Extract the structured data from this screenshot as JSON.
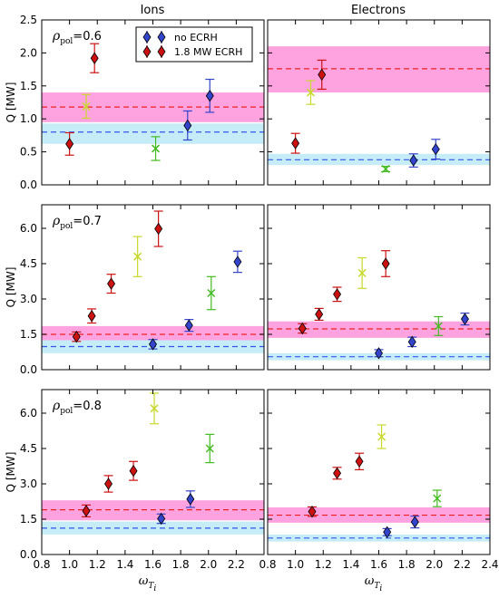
{
  "chart_data": {
    "type": "scatter",
    "column_titles": [
      "Ions",
      "Electrons"
    ],
    "ylabel": "Q [MW]",
    "xlabel": "ω",
    "xlabel_sub": "T",
    "xlabel_subsub": "i",
    "rho_symbol": "ρ",
    "rho_sub": "pol",
    "legend": {
      "location": "top",
      "entries": [
        {
          "label": "no ECRH",
          "color": "#3344cc"
        },
        {
          "label": "1.8 MW ECRH",
          "color": "#cc1111"
        }
      ]
    },
    "colors": {
      "noecrh": "#3344cc",
      "ecrh": "#cc1111",
      "yellowgreen": "#c8d82a",
      "green": "#44bb22",
      "band_ecrh": "#ff99dd",
      "band_noecrh": "#c6ecf8",
      "dash_ecrh": "#ee2222",
      "dash_noecrh": "#3355ee"
    },
    "panels": [
      {
        "row": 0,
        "col": 0,
        "rho_label": "=0.6",
        "xlim": [
          0.8,
          2.4
        ],
        "ylim": [
          0.0,
          2.5
        ],
        "yticks": [
          "0.0",
          "0.5",
          "1.0",
          "1.5",
          "2.0",
          "2.5"
        ],
        "xticks": [],
        "bands": [
          {
            "kind": "ecrh",
            "lo": 0.95,
            "hi": 1.4,
            "mid": 1.18
          },
          {
            "kind": "noecrh",
            "lo": 0.62,
            "hi": 0.93,
            "mid": 0.8
          }
        ],
        "points": [
          {
            "x": 1.0,
            "y": 0.62,
            "err": 0.17,
            "color": "ecrh",
            "marker": "diamond"
          },
          {
            "x": 1.12,
            "y": 1.19,
            "err": 0.18,
            "color": "yellowgreen",
            "marker": "x"
          },
          {
            "x": 1.18,
            "y": 1.92,
            "err": 0.22,
            "color": "ecrh",
            "marker": "diamond"
          },
          {
            "x": 1.62,
            "y": 0.55,
            "err": 0.18,
            "color": "green",
            "marker": "x"
          },
          {
            "x": 1.85,
            "y": 0.9,
            "err": 0.22,
            "color": "noecrh",
            "marker": "diamond"
          },
          {
            "x": 2.01,
            "y": 1.35,
            "err": 0.25,
            "color": "noecrh",
            "marker": "diamond"
          }
        ]
      },
      {
        "row": 0,
        "col": 1,
        "rho_label": "",
        "xlim": [
          0.8,
          2.4
        ],
        "ylim": [
          0.0,
          2.5
        ],
        "yticks": [],
        "xticks": [],
        "bands": [
          {
            "kind": "ecrh",
            "lo": 1.4,
            "hi": 2.1,
            "mid": 1.76
          },
          {
            "kind": "noecrh",
            "lo": 0.3,
            "hi": 0.47,
            "mid": 0.38
          }
        ],
        "points": [
          {
            "x": 1.0,
            "y": 0.63,
            "err": 0.15,
            "color": "ecrh",
            "marker": "diamond"
          },
          {
            "x": 1.11,
            "y": 1.4,
            "err": 0.18,
            "color": "yellowgreen",
            "marker": "x"
          },
          {
            "x": 1.19,
            "y": 1.67,
            "err": 0.22,
            "color": "ecrh",
            "marker": "diamond"
          },
          {
            "x": 1.65,
            "y": 0.24,
            "err": 0.04,
            "color": "green",
            "marker": "x"
          },
          {
            "x": 1.85,
            "y": 0.37,
            "err": 0.1,
            "color": "noecrh",
            "marker": "diamond"
          },
          {
            "x": 2.01,
            "y": 0.54,
            "err": 0.15,
            "color": "noecrh",
            "marker": "diamond"
          }
        ]
      },
      {
        "row": 1,
        "col": 0,
        "rho_label": "=0.7",
        "xlim": [
          0.8,
          2.4
        ],
        "ylim": [
          0.0,
          7.0
        ],
        "yticks": [
          "0.0",
          "1.5",
          "3.0",
          "4.5",
          "6.0"
        ],
        "xticks": [],
        "bands": [
          {
            "kind": "ecrh",
            "lo": 1.2,
            "hi": 1.85,
            "mid": 1.5
          },
          {
            "kind": "noecrh",
            "lo": 0.7,
            "hi": 1.25,
            "mid": 0.98
          }
        ],
        "points": [
          {
            "x": 1.05,
            "y": 1.4,
            "err": 0.2,
            "color": "ecrh",
            "marker": "diamond"
          },
          {
            "x": 1.16,
            "y": 2.28,
            "err": 0.3,
            "color": "ecrh",
            "marker": "diamond"
          },
          {
            "x": 1.3,
            "y": 3.65,
            "err": 0.4,
            "color": "ecrh",
            "marker": "diamond"
          },
          {
            "x": 1.49,
            "y": 4.8,
            "err": 0.85,
            "color": "yellowgreen",
            "marker": "x"
          },
          {
            "x": 1.6,
            "y": 1.08,
            "err": 0.2,
            "color": "noecrh",
            "marker": "diamond"
          },
          {
            "x": 1.64,
            "y": 5.98,
            "err": 0.75,
            "color": "ecrh",
            "marker": "diamond"
          },
          {
            "x": 1.86,
            "y": 1.88,
            "err": 0.25,
            "color": "noecrh",
            "marker": "diamond"
          },
          {
            "x": 2.02,
            "y": 3.25,
            "err": 0.7,
            "color": "green",
            "marker": "x"
          },
          {
            "x": 2.21,
            "y": 4.58,
            "err": 0.45,
            "color": "noecrh",
            "marker": "diamond"
          }
        ]
      },
      {
        "row": 1,
        "col": 1,
        "rho_label": "",
        "xlim": [
          0.8,
          2.4
        ],
        "ylim": [
          0.0,
          7.0
        ],
        "yticks": [],
        "xticks": [],
        "bands": [
          {
            "kind": "ecrh",
            "lo": 1.35,
            "hi": 2.05,
            "mid": 1.73
          },
          {
            "kind": "noecrh",
            "lo": 0.4,
            "hi": 0.7,
            "mid": 0.55
          }
        ],
        "points": [
          {
            "x": 1.05,
            "y": 1.75,
            "err": 0.2,
            "color": "ecrh",
            "marker": "diamond"
          },
          {
            "x": 1.17,
            "y": 2.35,
            "err": 0.25,
            "color": "ecrh",
            "marker": "diamond"
          },
          {
            "x": 1.3,
            "y": 3.2,
            "err": 0.3,
            "color": "ecrh",
            "marker": "diamond"
          },
          {
            "x": 1.48,
            "y": 4.1,
            "err": 0.65,
            "color": "yellowgreen",
            "marker": "x"
          },
          {
            "x": 1.6,
            "y": 0.7,
            "err": 0.15,
            "color": "noecrh",
            "marker": "diamond"
          },
          {
            "x": 1.65,
            "y": 4.5,
            "err": 0.55,
            "color": "ecrh",
            "marker": "diamond"
          },
          {
            "x": 1.84,
            "y": 1.18,
            "err": 0.2,
            "color": "noecrh",
            "marker": "diamond"
          },
          {
            "x": 2.03,
            "y": 1.85,
            "err": 0.4,
            "color": "green",
            "marker": "x"
          },
          {
            "x": 2.22,
            "y": 2.15,
            "err": 0.25,
            "color": "noecrh",
            "marker": "diamond"
          }
        ]
      },
      {
        "row": 2,
        "col": 0,
        "rho_label": "=0.8",
        "xlim": [
          0.8,
          2.4
        ],
        "ylim": [
          0.0,
          7.0
        ],
        "yticks": [
          "0.0",
          "1.5",
          "3.0",
          "4.5",
          "6.0"
        ],
        "xticks": [
          "0.8",
          "1.0",
          "1.2",
          "1.4",
          "1.6",
          "1.8",
          "2.0",
          "2.2"
        ],
        "bands": [
          {
            "kind": "ecrh",
            "lo": 1.45,
            "hi": 2.3,
            "mid": 1.9
          },
          {
            "kind": "noecrh",
            "lo": 0.85,
            "hi": 1.4,
            "mid": 1.12
          }
        ],
        "points": [
          {
            "x": 1.12,
            "y": 1.85,
            "err": 0.25,
            "color": "ecrh",
            "marker": "diamond"
          },
          {
            "x": 1.28,
            "y": 3.0,
            "err": 0.35,
            "color": "ecrh",
            "marker": "diamond"
          },
          {
            "x": 1.46,
            "y": 3.55,
            "err": 0.4,
            "color": "ecrh",
            "marker": "diamond"
          },
          {
            "x": 1.61,
            "y": 6.2,
            "err": 0.65,
            "color": "yellowgreen",
            "marker": "x"
          },
          {
            "x": 1.66,
            "y": 1.52,
            "err": 0.2,
            "color": "noecrh",
            "marker": "diamond"
          },
          {
            "x": 1.87,
            "y": 2.35,
            "err": 0.35,
            "color": "noecrh",
            "marker": "diamond"
          },
          {
            "x": 2.01,
            "y": 4.5,
            "err": 0.6,
            "color": "green",
            "marker": "x"
          }
        ]
      },
      {
        "row": 2,
        "col": 1,
        "rho_label": "",
        "xlim": [
          0.8,
          2.4
        ],
        "ylim": [
          0.0,
          7.0
        ],
        "yticks": [],
        "xticks": [
          "0.8",
          "1.0",
          "1.2",
          "1.4",
          "1.6",
          "1.8",
          "2.0",
          "2.2",
          "2.4"
        ],
        "bands": [
          {
            "kind": "ecrh",
            "lo": 1.35,
            "hi": 2.0,
            "mid": 1.67
          },
          {
            "kind": "noecrh",
            "lo": 0.55,
            "hi": 0.85,
            "mid": 0.7
          }
        ],
        "points": [
          {
            "x": 1.12,
            "y": 1.82,
            "err": 0.2,
            "color": "ecrh",
            "marker": "diamond"
          },
          {
            "x": 1.3,
            "y": 3.45,
            "err": 0.25,
            "color": "ecrh",
            "marker": "diamond"
          },
          {
            "x": 1.46,
            "y": 3.95,
            "err": 0.35,
            "color": "ecrh",
            "marker": "diamond"
          },
          {
            "x": 1.62,
            "y": 5.0,
            "err": 0.5,
            "color": "yellowgreen",
            "marker": "x"
          },
          {
            "x": 1.66,
            "y": 0.95,
            "err": 0.15,
            "color": "noecrh",
            "marker": "diamond"
          },
          {
            "x": 1.86,
            "y": 1.38,
            "err": 0.25,
            "color": "noecrh",
            "marker": "diamond"
          },
          {
            "x": 2.02,
            "y": 2.38,
            "err": 0.35,
            "color": "green",
            "marker": "x"
          }
        ]
      }
    ]
  }
}
